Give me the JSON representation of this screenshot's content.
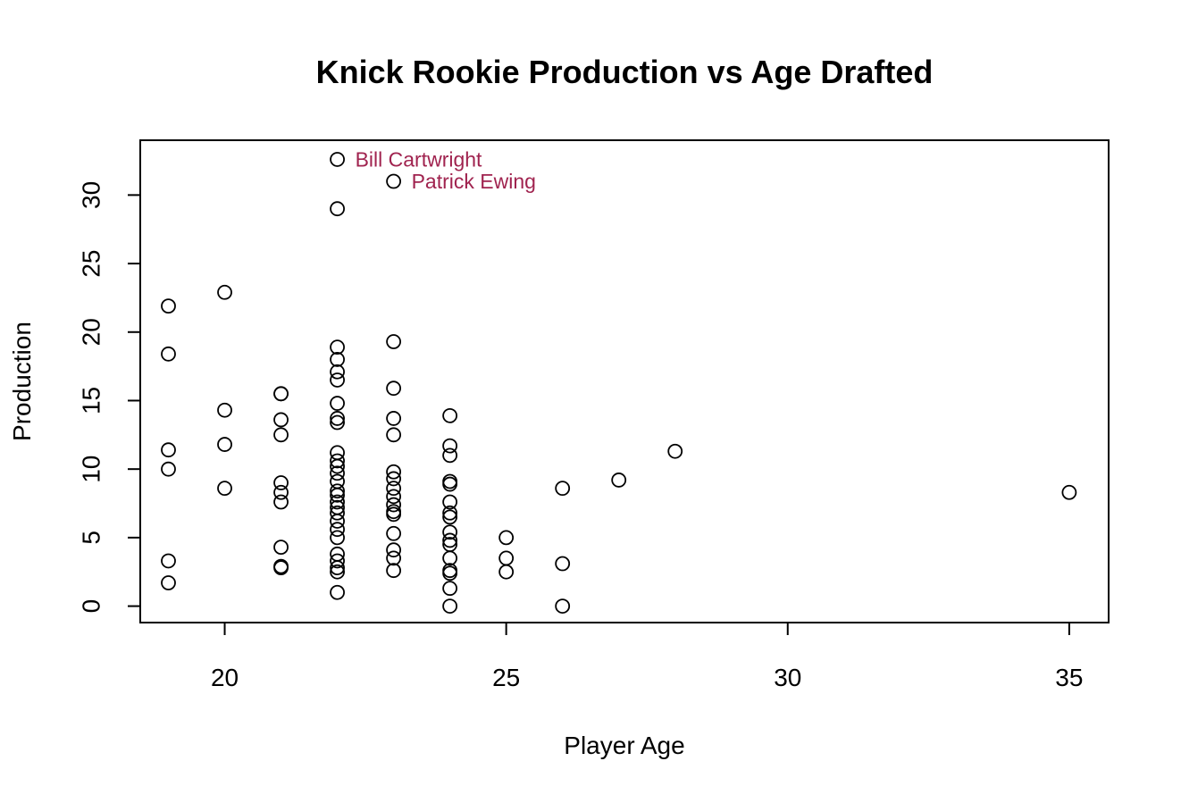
{
  "chart_data": {
    "type": "scatter",
    "title": "Knick Rookie Production vs Age Drafted",
    "xlabel": "Player Age",
    "ylabel": "Production",
    "xlim": [
      18.5,
      35.7
    ],
    "ylim": [
      -1.2,
      34.0
    ],
    "x_ticks": [
      20,
      25,
      30,
      35
    ],
    "y_ticks": [
      0,
      5,
      10,
      15,
      20,
      25,
      30
    ],
    "grid": false,
    "point_color": "#000000",
    "annotation_color": "#a0234f",
    "annotations": [
      {
        "text": "Bill Cartwright",
        "x": 22,
        "y": 32.6
      },
      {
        "text": "Patrick Ewing",
        "x": 23,
        "y": 31.0
      }
    ],
    "points": [
      {
        "x": 19,
        "y": 21.9
      },
      {
        "x": 19,
        "y": 18.4
      },
      {
        "x": 19,
        "y": 11.4
      },
      {
        "x": 19,
        "y": 10.0
      },
      {
        "x": 19,
        "y": 3.3
      },
      {
        "x": 19,
        "y": 1.7
      },
      {
        "x": 20,
        "y": 22.9
      },
      {
        "x": 20,
        "y": 14.3
      },
      {
        "x": 20,
        "y": 11.8
      },
      {
        "x": 20,
        "y": 8.6
      },
      {
        "x": 21,
        "y": 15.5
      },
      {
        "x": 21,
        "y": 15.5
      },
      {
        "x": 21,
        "y": 13.6
      },
      {
        "x": 21,
        "y": 12.5
      },
      {
        "x": 21,
        "y": 9.0
      },
      {
        "x": 21,
        "y": 8.3
      },
      {
        "x": 21,
        "y": 7.6
      },
      {
        "x": 21,
        "y": 4.3
      },
      {
        "x": 21,
        "y": 2.9
      },
      {
        "x": 21,
        "y": 2.8
      },
      {
        "x": 22,
        "y": 32.6
      },
      {
        "x": 22,
        "y": 29.0
      },
      {
        "x": 22,
        "y": 18.9
      },
      {
        "x": 22,
        "y": 18.0
      },
      {
        "x": 22,
        "y": 17.1
      },
      {
        "x": 22,
        "y": 16.5
      },
      {
        "x": 22,
        "y": 14.8
      },
      {
        "x": 22,
        "y": 13.7
      },
      {
        "x": 22,
        "y": 13.4
      },
      {
        "x": 22,
        "y": 11.2
      },
      {
        "x": 22,
        "y": 10.6
      },
      {
        "x": 22,
        "y": 10.2
      },
      {
        "x": 22,
        "y": 9.7
      },
      {
        "x": 22,
        "y": 9.1
      },
      {
        "x": 22,
        "y": 8.4
      },
      {
        "x": 22,
        "y": 8.1
      },
      {
        "x": 22,
        "y": 7.6
      },
      {
        "x": 22,
        "y": 7.2
      },
      {
        "x": 22,
        "y": 6.8
      },
      {
        "x": 22,
        "y": 6.2
      },
      {
        "x": 22,
        "y": 5.6
      },
      {
        "x": 22,
        "y": 5.0
      },
      {
        "x": 22,
        "y": 3.8
      },
      {
        "x": 22,
        "y": 3.3
      },
      {
        "x": 22,
        "y": 2.8
      },
      {
        "x": 22,
        "y": 2.5
      },
      {
        "x": 22,
        "y": 1.0
      },
      {
        "x": 23,
        "y": 31.0
      },
      {
        "x": 23,
        "y": 19.3
      },
      {
        "x": 23,
        "y": 15.9
      },
      {
        "x": 23,
        "y": 13.7
      },
      {
        "x": 23,
        "y": 12.5
      },
      {
        "x": 23,
        "y": 9.8
      },
      {
        "x": 23,
        "y": 9.3
      },
      {
        "x": 23,
        "y": 8.6
      },
      {
        "x": 23,
        "y": 8.0
      },
      {
        "x": 23,
        "y": 7.4
      },
      {
        "x": 23,
        "y": 6.9
      },
      {
        "x": 23,
        "y": 6.7
      },
      {
        "x": 23,
        "y": 5.3
      },
      {
        "x": 23,
        "y": 4.1
      },
      {
        "x": 23,
        "y": 3.5
      },
      {
        "x": 23,
        "y": 2.6
      },
      {
        "x": 24,
        "y": 13.9
      },
      {
        "x": 24,
        "y": 11.7
      },
      {
        "x": 24,
        "y": 11.0
      },
      {
        "x": 24,
        "y": 9.1
      },
      {
        "x": 24,
        "y": 8.9
      },
      {
        "x": 24,
        "y": 7.6
      },
      {
        "x": 24,
        "y": 6.8
      },
      {
        "x": 24,
        "y": 6.5
      },
      {
        "x": 24,
        "y": 5.4
      },
      {
        "x": 24,
        "y": 4.8
      },
      {
        "x": 24,
        "y": 4.5
      },
      {
        "x": 24,
        "y": 3.5
      },
      {
        "x": 24,
        "y": 2.6
      },
      {
        "x": 24,
        "y": 2.4
      },
      {
        "x": 24,
        "y": 1.3
      },
      {
        "x": 24,
        "y": 0.0
      },
      {
        "x": 25,
        "y": 5.0
      },
      {
        "x": 25,
        "y": 3.5
      },
      {
        "x": 25,
        "y": 2.5
      },
      {
        "x": 26,
        "y": 8.6
      },
      {
        "x": 26,
        "y": 3.1
      },
      {
        "x": 26,
        "y": 0.0
      },
      {
        "x": 27,
        "y": 9.2
      },
      {
        "x": 28,
        "y": 11.3
      },
      {
        "x": 35,
        "y": 8.3
      }
    ]
  }
}
